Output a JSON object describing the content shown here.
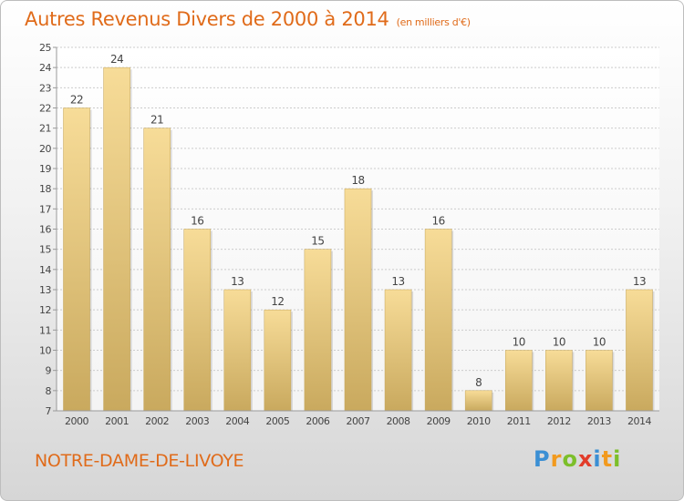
{
  "chart_data": {
    "type": "bar",
    "title": "Autres Revenus Divers de 2000 à 2014",
    "subtitle": "(en milliers d'€)",
    "categories": [
      "2000",
      "2001",
      "2002",
      "2003",
      "2004",
      "2005",
      "2006",
      "2007",
      "2008",
      "2009",
      "2010",
      "2011",
      "2012",
      "2013",
      "2014"
    ],
    "values": [
      22,
      24,
      21,
      16,
      13,
      12,
      15,
      18,
      13,
      16,
      8,
      10,
      10,
      10,
      13
    ],
    "ylim": [
      7,
      25
    ],
    "yticks": [
      7,
      8,
      9,
      10,
      11,
      12,
      13,
      14,
      15,
      16,
      17,
      18,
      19,
      20,
      21,
      22,
      23,
      24,
      25
    ],
    "grid": true,
    "bar_color": "#e8c878",
    "xlabel": "",
    "ylabel": ""
  },
  "footer": {
    "commune": "NOTRE-DAME-DE-LIVOYE",
    "logo_letters": [
      "P",
      "r",
      "o",
      "x",
      "i",
      "t",
      "i"
    ]
  },
  "colors": {
    "accent": "#e06b1a",
    "grid": "#cccccc"
  }
}
